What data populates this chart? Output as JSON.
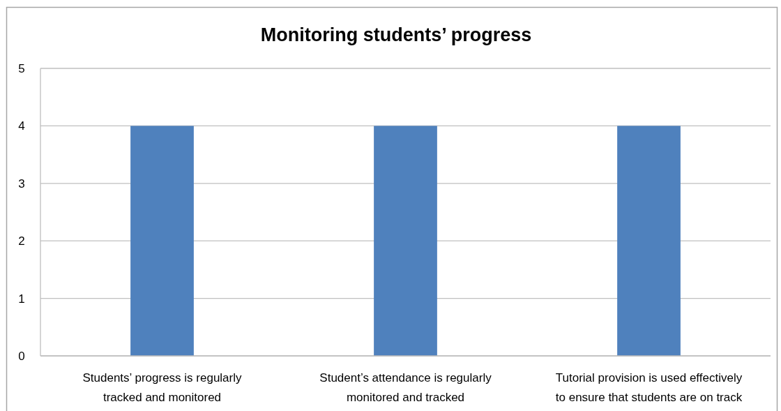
{
  "chart_data": {
    "type": "bar",
    "title": "Monitoring students’ progress",
    "categories": [
      "Students’ progress is regularly tracked and monitored",
      "Student’s attendance is regularly monitored and tracked",
      "Tutorial provision is used effectively to ensure that students are on track"
    ],
    "values": [
      4,
      4,
      4
    ],
    "color": "#4f81bd",
    "ylim": [
      0,
      5
    ],
    "yticks": [
      0,
      1,
      2,
      3,
      4,
      5
    ],
    "grid": "y"
  }
}
